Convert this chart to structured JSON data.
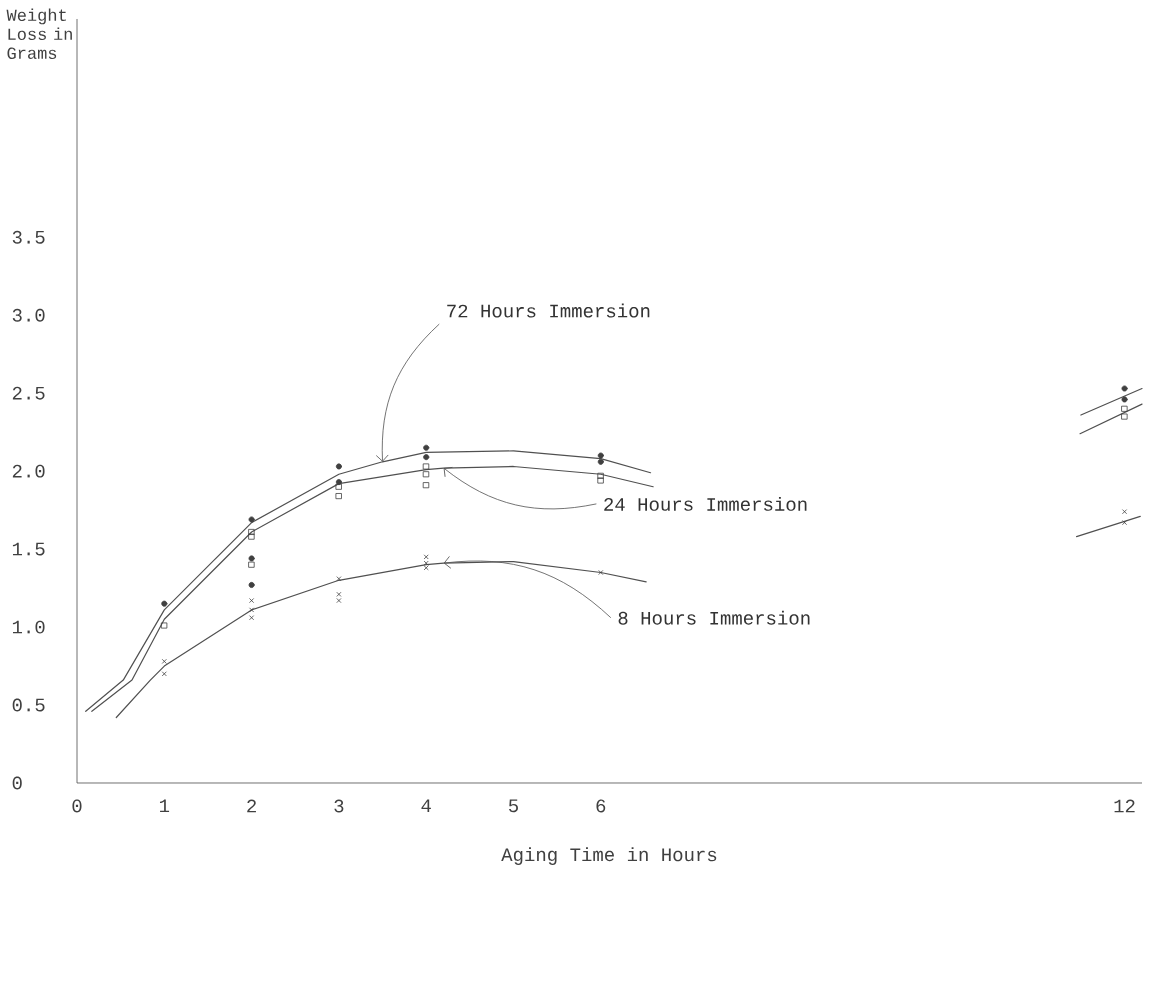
{
  "chart_data": {
    "type": "line",
    "xlabel": "Aging Time in Hours",
    "ylabel": "Weight Loss in Grams",
    "xlim": [
      0,
      12.2
    ],
    "xticks": [
      0,
      1,
      2,
      3,
      4,
      5,
      6,
      12
    ],
    "ylim": [
      0,
      4.9
    ],
    "yticks": [
      0,
      0.5,
      {
        "value": 1,
        "label": "1.0"
      },
      1.5,
      {
        "value": 2,
        "label": "2.0"
      },
      2.5,
      {
        "value": 3,
        "label": "3.0"
      },
      3.5
    ],
    "series": [
      {
        "name": "72 Hours Immersion",
        "type": "line",
        "color": "#505050",
        "x": [
          0.1,
          0.53,
          1,
          2,
          3,
          3.5,
          4,
          5,
          6,
          6.57
        ],
        "values": [
          0.46,
          0.66,
          1.11,
          1.67,
          1.98,
          2.06,
          2.12,
          2.13,
          2.08,
          1.99
        ]
      },
      {
        "name": "24 Hours Immersion",
        "type": "line",
        "color": "#505050",
        "x": [
          0.17,
          0.63,
          1,
          2,
          3,
          4,
          4.2,
          5,
          6,
          6.6
        ],
        "values": [
          0.46,
          0.66,
          1.05,
          1.61,
          1.92,
          2.01,
          2.02,
          2.03,
          1.98,
          1.9
        ]
      },
      {
        "name": "8 Hours Immersion",
        "type": "line",
        "color": "#505050",
        "x": [
          0.45,
          0.84,
          1,
          2,
          3,
          4,
          4.2,
          5,
          6,
          6.52
        ],
        "values": [
          0.42,
          0.66,
          0.75,
          1.11,
          1.3,
          1.4,
          1.41,
          1.42,
          1.35,
          1.29
        ]
      },
      {
        "type": "line",
        "color": "#505050",
        "x": [
          11.5,
          12.2
        ],
        "values": [
          2.36,
          2.53
        ]
      },
      {
        "type": "line",
        "color": "#505050",
        "x": [
          11.49,
          12.2
        ],
        "values": [
          2.24,
          2.43
        ]
      },
      {
        "type": "line",
        "color": "#505050",
        "x": [
          11.45,
          12.18
        ],
        "values": [
          1.58,
          1.71
        ]
      },
      {
        "type": "scatter",
        "marker": "circle",
        "color": "#404040",
        "x": [
          1,
          2,
          2,
          2,
          3,
          3,
          4,
          4,
          6,
          6,
          12,
          12
        ],
        "values": [
          1.15,
          1.69,
          1.44,
          1.27,
          2.03,
          1.93,
          2.15,
          2.09,
          2.1,
          2.06,
          2.53,
          2.46
        ]
      },
      {
        "type": "scatter",
        "marker": "square",
        "color": "#404040",
        "x": [
          1,
          2,
          2,
          2,
          3,
          3,
          4,
          4,
          4,
          6,
          6,
          12,
          12
        ],
        "values": [
          1.01,
          1.58,
          1.61,
          1.4,
          1.9,
          1.84,
          2.03,
          1.98,
          1.91,
          1.97,
          1.94,
          2.4,
          2.35
        ]
      },
      {
        "type": "scatter",
        "marker": "cross",
        "color": "#404040",
        "x": [
          1,
          1,
          2,
          2,
          2,
          3,
          3,
          3,
          4,
          4,
          4,
          6,
          12,
          12
        ],
        "values": [
          0.78,
          0.7,
          1.17,
          1.11,
          1.06,
          1.31,
          1.21,
          1.17,
          1.45,
          1.41,
          1.38,
          1.35,
          1.74,
          1.67
        ]
      }
    ]
  }
}
